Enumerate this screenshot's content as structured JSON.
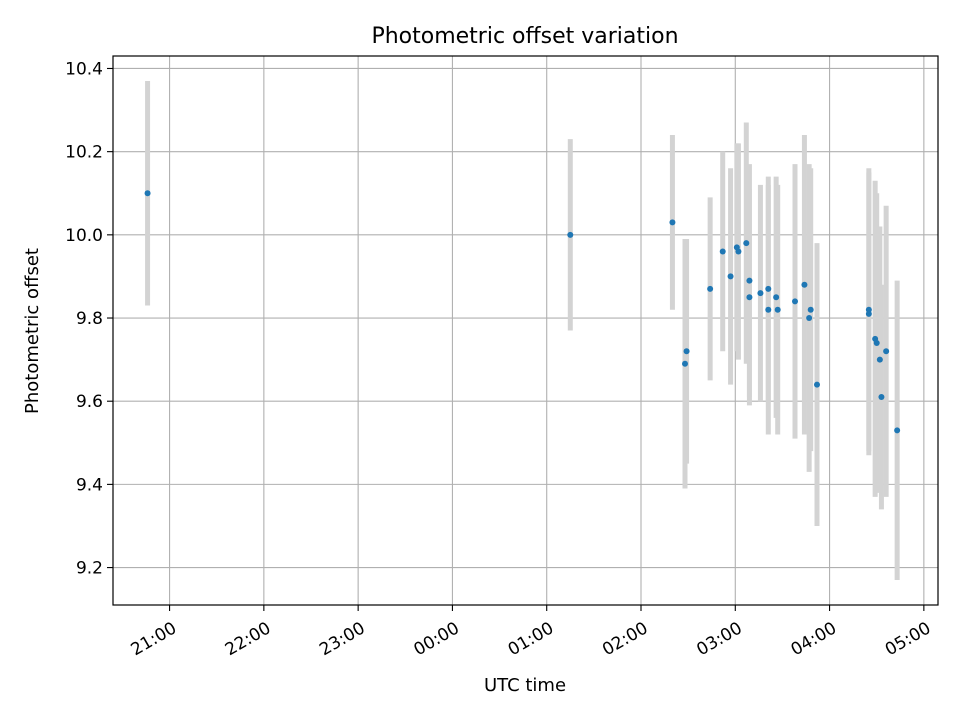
{
  "chart_data": {
    "type": "scatter",
    "title": "Photometric offset variation",
    "xlabel": "UTC time",
    "ylabel": "Photometric offset",
    "x_tick_labels": [
      "21:00",
      "22:00",
      "23:00",
      "00:00",
      "01:00",
      "02:00",
      "03:00",
      "04:00",
      "05:00"
    ],
    "y_tick_labels": [
      "9.2",
      "9.4",
      "9.6",
      "9.8",
      "10.0",
      "10.2",
      "10.4"
    ],
    "y_ticks": [
      9.2,
      9.4,
      9.6,
      9.8,
      10.0,
      10.2,
      10.4
    ],
    "x_ticks_hours": [
      21,
      22,
      23,
      24,
      25,
      26,
      27,
      28,
      29
    ],
    "xlim_hours": [
      20.4,
      29.15
    ],
    "ylim": [
      9.11,
      10.43
    ],
    "grid": true,
    "marker_color": "#1f77b4",
    "errorbar_color": "#d3d3d3",
    "points": [
      {
        "t": "20:46",
        "y": 10.1,
        "err": 0.27
      },
      {
        "t": "01:15",
        "y": 10.0,
        "err": 0.23
      },
      {
        "t": "02:20",
        "y": 10.03,
        "err": 0.21
      },
      {
        "t": "02:28",
        "y": 9.69,
        "err": 0.3
      },
      {
        "t": "02:29",
        "y": 9.72,
        "err": 0.27
      },
      {
        "t": "02:44",
        "y": 9.87,
        "err": 0.22
      },
      {
        "t": "02:52",
        "y": 9.96,
        "err": 0.24
      },
      {
        "t": "02:57",
        "y": 9.9,
        "err": 0.26
      },
      {
        "t": "03:01",
        "y": 9.97,
        "err": 0.25
      },
      {
        "t": "03:02",
        "y": 9.96,
        "err": 0.26
      },
      {
        "t": "03:07",
        "y": 9.98,
        "err": 0.29
      },
      {
        "t": "03:09",
        "y": 9.85,
        "err": 0.26
      },
      {
        "t": "03:09",
        "y": 9.89,
        "err": 0.28
      },
      {
        "t": "03:16",
        "y": 9.86,
        "err": 0.26
      },
      {
        "t": "03:21",
        "y": 9.82,
        "err": 0.3
      },
      {
        "t": "03:21",
        "y": 9.87,
        "err": 0.27
      },
      {
        "t": "03:26",
        "y": 9.85,
        "err": 0.29
      },
      {
        "t": "03:27",
        "y": 9.82,
        "err": 0.3
      },
      {
        "t": "03:38",
        "y": 9.84,
        "err": 0.33
      },
      {
        "t": "03:44",
        "y": 9.88,
        "err": 0.36
      },
      {
        "t": "03:47",
        "y": 9.8,
        "err": 0.37
      },
      {
        "t": "03:48",
        "y": 9.82,
        "err": 0.34
      },
      {
        "t": "03:52",
        "y": 9.64,
        "err": 0.34
      },
      {
        "t": "04:25",
        "y": 9.82,
        "err": 0.34
      },
      {
        "t": "04:25",
        "y": 9.81,
        "err": 0.34
      },
      {
        "t": "04:29",
        "y": 9.75,
        "err": 0.38
      },
      {
        "t": "04:30",
        "y": 9.74,
        "err": 0.36
      },
      {
        "t": "04:32",
        "y": 9.7,
        "err": 0.32
      },
      {
        "t": "04:33",
        "y": 9.61,
        "err": 0.27
      },
      {
        "t": "04:36",
        "y": 9.72,
        "err": 0.35
      },
      {
        "t": "04:43",
        "y": 9.53,
        "err": 0.36
      }
    ]
  }
}
